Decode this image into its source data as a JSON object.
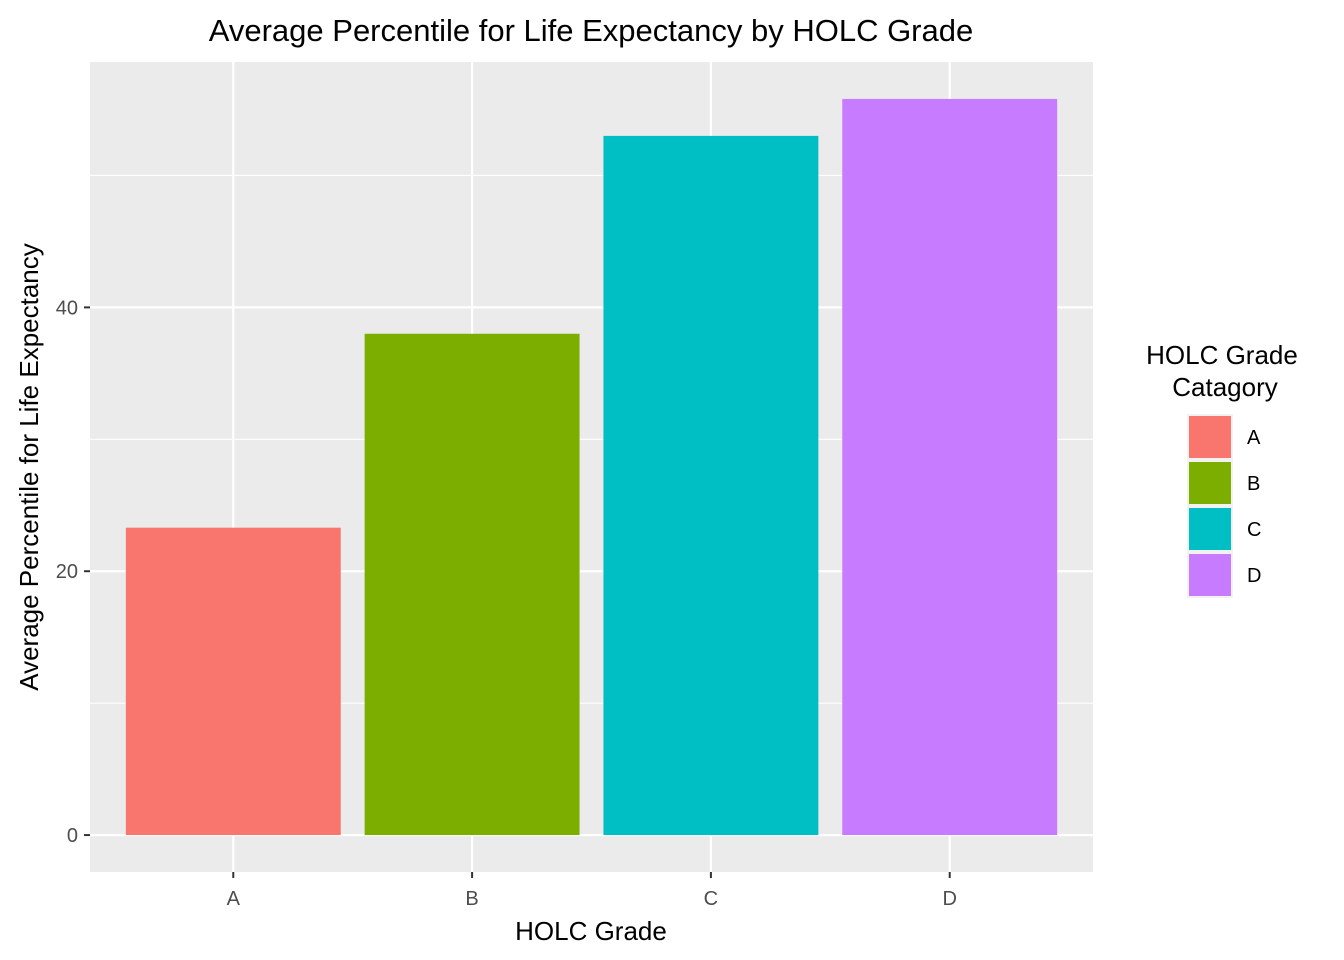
{
  "chart_data": {
    "type": "bar",
    "title": "Average Percentile for Life Expectancy by HOLC Grade",
    "xlabel": "HOLC Grade",
    "ylabel": "Average Percentile for Life Expectancy",
    "categories": [
      "A",
      "B",
      "C",
      "D"
    ],
    "values": [
      23.3,
      38.0,
      53.0,
      55.8
    ],
    "ylim": [
      -2.8,
      58.6
    ],
    "yticks": [
      0,
      20,
      40
    ],
    "grid": true,
    "legend": {
      "title_lines": [
        "HOLC Grade",
        "Catagory"
      ],
      "position": "right",
      "entries": [
        "A",
        "B",
        "C",
        "D"
      ]
    },
    "colors": [
      "#F8766D",
      "#7CAE00",
      "#00BFC4",
      "#C77CFF"
    ],
    "panel_background": "#EBEBEB",
    "grid_color": "#FFFFFF"
  }
}
